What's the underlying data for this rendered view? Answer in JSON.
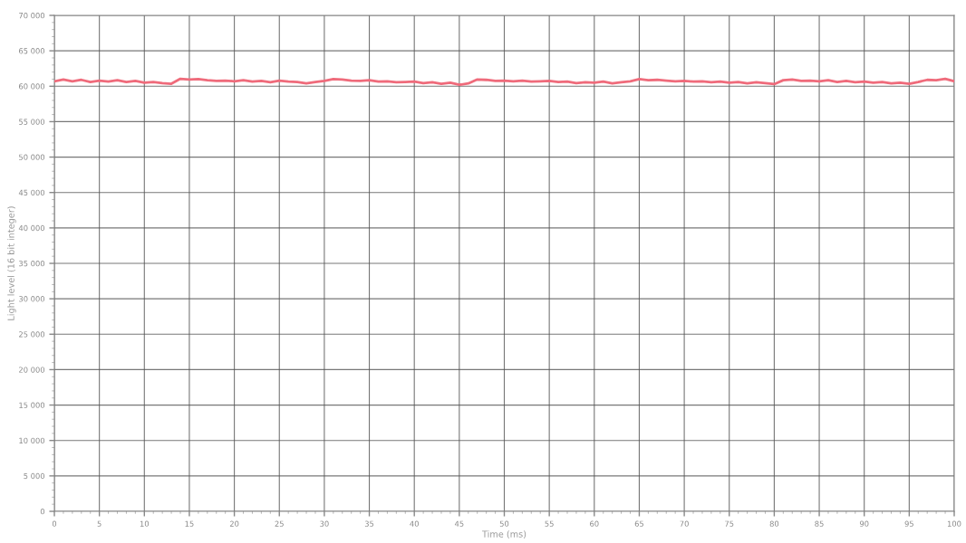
{
  "chart_data": {
    "type": "line",
    "xlabel": "Time (ms)",
    "ylabel": "Light level (16 bit integer)",
    "x": [
      0,
      1,
      2,
      3,
      4,
      5,
      6,
      7,
      8,
      9,
      10,
      11,
      12,
      13,
      14,
      15,
      16,
      17,
      18,
      19,
      20,
      21,
      22,
      23,
      24,
      25,
      26,
      27,
      28,
      29,
      30,
      31,
      32,
      33,
      34,
      35,
      36,
      37,
      38,
      39,
      40,
      41,
      42,
      43,
      44,
      45,
      46,
      47,
      48,
      49,
      50,
      51,
      52,
      53,
      54,
      55,
      56,
      57,
      58,
      59,
      60,
      61,
      62,
      63,
      64,
      65,
      66,
      67,
      68,
      69,
      70,
      71,
      72,
      73,
      74,
      75,
      76,
      77,
      78,
      79,
      80,
      81,
      82,
      83,
      84,
      85,
      86,
      87,
      88,
      89,
      90,
      91,
      92,
      93,
      94,
      95,
      96,
      97,
      98,
      99,
      100
    ],
    "series": [
      {
        "color": "#ef6b7b",
        "values": [
          60700,
          60950,
          60700,
          60900,
          60600,
          60800,
          60650,
          60850,
          60600,
          60750,
          60500,
          60600,
          60450,
          60350,
          61050,
          60950,
          61000,
          60850,
          60750,
          60800,
          60700,
          60850,
          60650,
          60750,
          60550,
          60800,
          60650,
          60600,
          60400,
          60600,
          60750,
          61000,
          60950,
          60800,
          60750,
          60850,
          60650,
          60700,
          60550,
          60600,
          60650,
          60450,
          60550,
          60350,
          60500,
          60200,
          60400,
          60950,
          60900,
          60750,
          60800,
          60700,
          60800,
          60650,
          60700,
          60750,
          60600,
          60650,
          60450,
          60550,
          60500,
          60650,
          60400,
          60550,
          60700,
          61000,
          60850,
          60900,
          60800,
          60700,
          60750,
          60650,
          60700,
          60550,
          60650,
          60500,
          60600,
          60400,
          60550,
          60450,
          60300,
          60850,
          60950,
          60750,
          60800,
          60700,
          60850,
          60600,
          60750,
          60550,
          60650,
          60500,
          60600,
          60400,
          60500,
          60350,
          60600,
          60900,
          60850,
          61050,
          60700
        ]
      }
    ],
    "xlim": [
      0,
      100
    ],
    "xticks": [
      0,
      5,
      10,
      15,
      20,
      25,
      30,
      35,
      40,
      45,
      50,
      55,
      60,
      65,
      70,
      75,
      80,
      85,
      90,
      95,
      100
    ],
    "ylim": [
      0,
      70000
    ],
    "yticks": [
      {
        "value": 0,
        "label": "0"
      },
      {
        "value": 5000,
        "label": "5 000"
      },
      {
        "value": 10000,
        "label": "10 000"
      },
      {
        "value": 15000,
        "label": "15 000"
      },
      {
        "value": 20000,
        "label": "20 000"
      },
      {
        "value": 25000,
        "label": "25 000"
      },
      {
        "value": 30000,
        "label": "30 000"
      },
      {
        "value": 35000,
        "label": "35 000"
      },
      {
        "value": 40000,
        "label": "40 000"
      },
      {
        "value": 45000,
        "label": "45 000"
      },
      {
        "value": 50000,
        "label": "50 000"
      },
      {
        "value": 55000,
        "label": "55 000"
      },
      {
        "value": 60000,
        "label": "60 000"
      },
      {
        "value": 65000,
        "label": "65 000"
      },
      {
        "value": 70000,
        "label": "70 000"
      }
    ],
    "grid": true,
    "line_style": "solid",
    "marker": "none"
  }
}
